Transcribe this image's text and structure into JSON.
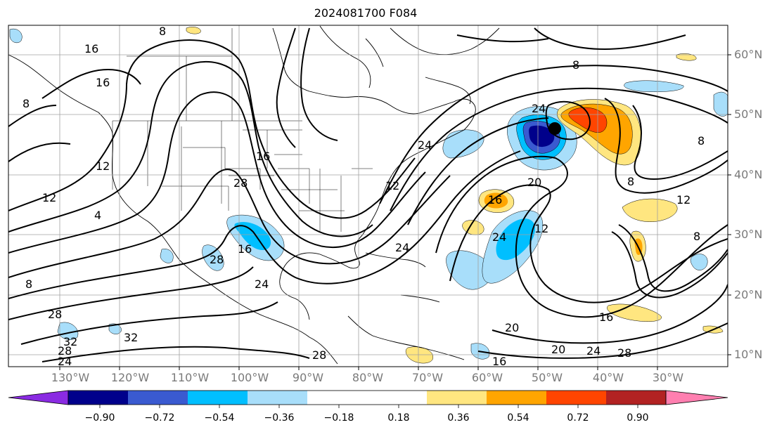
{
  "title": "2024081700 F084",
  "lat_labels": [
    "60°N",
    "50°N",
    "40°N",
    "30°N",
    "20°N",
    "10°N"
  ],
  "lon_labels": [
    "130°W",
    "120°W",
    "110°W",
    "100°W",
    "90°W",
    "80°W",
    "70°W",
    "60°W",
    "50°W",
    "40°W",
    "30°W"
  ],
  "colorbar": {
    "ticks": [
      "−0.90",
      "−0.72",
      "−0.54",
      "−0.36",
      "−0.18",
      "0.18",
      "0.36",
      "0.54",
      "0.72",
      "0.90"
    ],
    "colors": [
      "#8a2be2",
      "#00008b",
      "#3a5ad0",
      "#00bfff",
      "#a8defa",
      "#ffffff",
      "#ffe680",
      "#ffa500",
      "#ff4500",
      "#b22222",
      "#ff7fb0"
    ]
  },
  "contour_labels": [
    "8",
    "16",
    "16",
    "8",
    "12",
    "12",
    "4",
    "8",
    "28",
    "32",
    "32",
    "28",
    "24",
    "16",
    "28",
    "28",
    "16",
    "24",
    "24",
    "12",
    "24",
    "16",
    "24",
    "20",
    "12",
    "8",
    "8",
    "8",
    "12",
    "8",
    "24",
    "20",
    "20",
    "24",
    "28",
    "16",
    "16",
    "28"
  ],
  "marker": "low-center"
}
